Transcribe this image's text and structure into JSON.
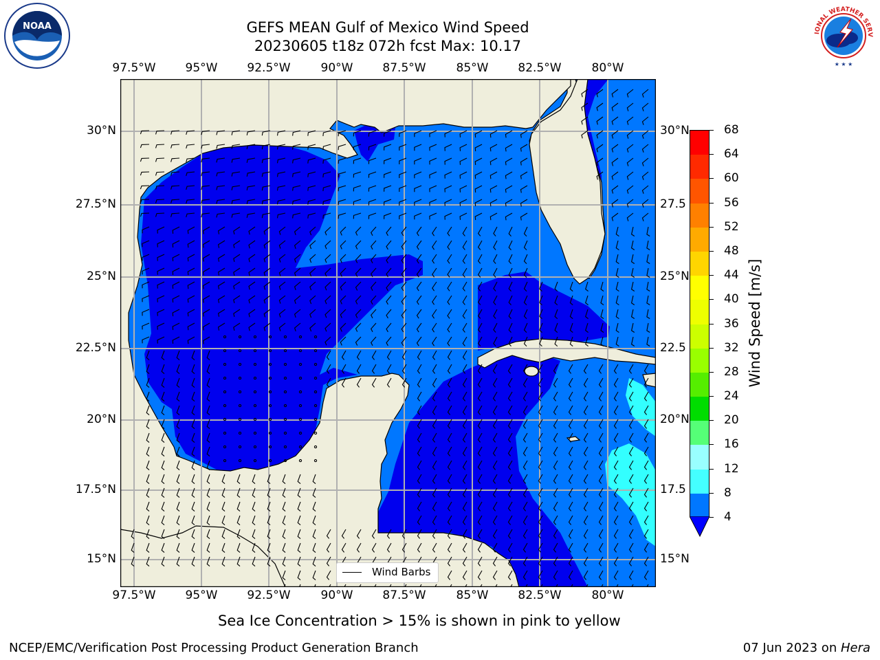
{
  "title_line1": "GEFS MEAN Gulf of Mexico Wind Speed",
  "title_line2": "20230605 t18z 072h fcst   Max: 10.17",
  "lon_labels": [
    "97.5°W",
    "95°W",
    "92.5°W",
    "90°W",
    "87.5°W",
    "85°W",
    "82.5°W",
    "80°W"
  ],
  "lat_labels_left": [
    "30°N",
    "27.5°N",
    "25°N",
    "22.5°N",
    "20°N",
    "17.5°N",
    "15°N"
  ],
  "lat_labels_right": [
    "30°N",
    "27.5",
    "25°N",
    "22.5",
    "20°N",
    "17.5",
    "15°N"
  ],
  "legend_label": "Wind Barbs",
  "colorbar": {
    "label": "Wind Speed [m/s]",
    "ticks": [
      "68",
      "64",
      "60",
      "56",
      "52",
      "48",
      "44",
      "40",
      "36",
      "32",
      "28",
      "24",
      "20",
      "16",
      "12",
      "8",
      "4"
    ],
    "colors": [
      "#ff0000",
      "#ff2a00",
      "#ff5500",
      "#ff8000",
      "#ffaa00",
      "#ffd500",
      "#ffff00",
      "#eeff00",
      "#ccff00",
      "#99ff00",
      "#55ee00",
      "#00dd00",
      "#55ff77",
      "#99ffff",
      "#44ffff",
      "#00ffff",
      "#0077ff"
    ],
    "extend_color": "#0000ff"
  },
  "map_colors": {
    "land": "#efeedc",
    "water_low": "#0000ee",
    "water_mid": "#0077ff",
    "water_high": "#33ffff",
    "grid": "#b0b0b0"
  },
  "note": "Sea Ice Concentration > 15% is shown in pink to yellow",
  "footer_left": "NCEP/EMC/Verification Post Processing Product Generation Branch",
  "footer_date": "07 Jun 2023 on ",
  "footer_machine": "Hera",
  "logos": {
    "left": "NOAA",
    "right": "NATIONAL WEATHER SERVICE"
  }
}
